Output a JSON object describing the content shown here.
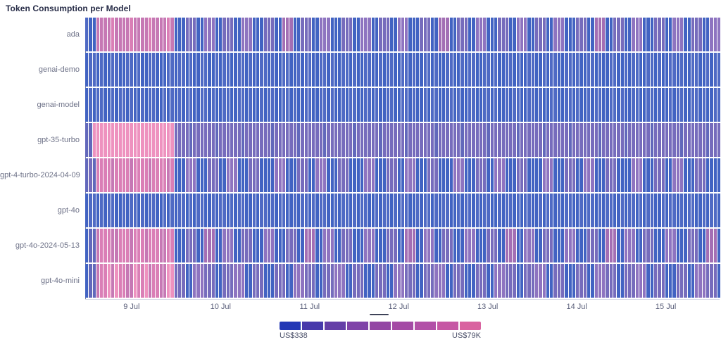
{
  "page": {
    "title": "Token Consumption per Model"
  },
  "chart_data": {
    "type": "heatmap",
    "title": "Token Consumption per Model",
    "x_axis": {
      "tick_labels": [
        "9 Jul",
        "10 Jul",
        "11 Jul",
        "12 Jul",
        "13 Jul",
        "14 Jul",
        "15 Jul"
      ],
      "tick_indices": [
        12,
        36,
        60,
        84,
        108,
        132,
        156
      ],
      "n_cols": 171,
      "cell_unit": "1 hour",
      "range": "8 Jul ~12:00 to 15 Jul ~15:00"
    },
    "y_categories": [
      "ada",
      "genai-demo",
      "genai-model",
      "gpt-35-turbo",
      "gpt-4-turbo-2024-04-09",
      "gpt-4o",
      "gpt-4o-2024-05-13",
      "gpt-4o-mini"
    ],
    "level_encoding": "each digit 0-8 is one hourly cell, indexing into cell_palette (0 = low/blue ~US$338, 8 = high/pink ~US$79K); prefix = first 24 cells, motif repeats cyclically to fill remaining cells",
    "rows": [
      {
        "label": "ada",
        "prefix": "100666676666766667666676",
        "motif": "000333004440033300444000333005550033300444"
      },
      {
        "label": "genai-demo",
        "prefix": "011010011001101001100011",
        "motif": "0110100110010110011010"
      },
      {
        "label": "genai-model",
        "prefix": "010110010110100101100101",
        "motif": "0101100110100110011010"
      },
      {
        "label": "gpt-35-turbo",
        "prefix": "228888888888888888888888",
        "motif": "3333233333323333332333"
      },
      {
        "label": "gpt-4-turbo-2024-04-09",
        "prefix": "232777767777677776777767",
        "motif": "000444000333004440003330"
      },
      {
        "label": "gpt-4o",
        "prefix": "011010110010110101100101",
        "motif": "0110101100101101011001"
      },
      {
        "label": "gpt-4o-2024-05-13",
        "prefix": "022677766777677767776677",
        "motif": "000333005550044400333000444"
      },
      {
        "label": "gpt-4o-mini",
        "prefix": "022677868776687786776688",
        "motif": "333004443330033344400333000"
      }
    ],
    "cell_palette": [
      "#4263c2",
      "#4f6ac4",
      "#6268bb",
      "#766cbc",
      "#8e74c0",
      "#a36fb4",
      "#c678b4",
      "#da7fb6",
      "#ee92bf"
    ],
    "legend": {
      "position": "bottom-center",
      "colors": [
        "#2338b5",
        "#4739ab",
        "#643ea7",
        "#7f42a8",
        "#9346a4",
        "#a44aa5",
        "#b250a7",
        "#c657a4",
        "#d963a0"
      ],
      "min_label": "US$338",
      "max_label": "US$79K"
    }
  }
}
